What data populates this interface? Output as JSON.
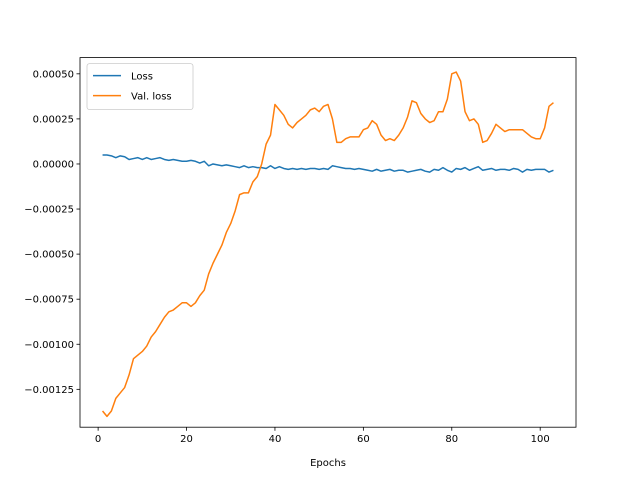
{
  "chart_data": {
    "type": "line",
    "title": "",
    "xlabel": "Epochs",
    "ylabel": "",
    "xlim": [
      -4.1,
      108.1
    ],
    "ylim": [
      -0.00146,
      0.00059
    ],
    "xticks": [
      0,
      20,
      40,
      60,
      80,
      100
    ],
    "xtick_labels": [
      "0",
      "20",
      "40",
      "60",
      "80",
      "100"
    ],
    "yticks": [
      -0.00125,
      -0.001,
      -0.00075,
      -0.0005,
      -0.00025,
      0,
      0.00025,
      0.0005
    ],
    "ytick_labels": [
      "−0.00125",
      "−0.00100",
      "−0.00075",
      "−0.00050",
      "−0.00025",
      "0.00000",
      "0.00025",
      "0.00050"
    ],
    "grid": false,
    "legend_position": "top-left",
    "x": [
      1,
      2,
      3,
      4,
      5,
      6,
      7,
      8,
      9,
      10,
      11,
      12,
      13,
      14,
      15,
      16,
      17,
      18,
      19,
      20,
      21,
      22,
      23,
      24,
      25,
      26,
      27,
      28,
      29,
      30,
      31,
      32,
      33,
      34,
      35,
      36,
      37,
      38,
      39,
      40,
      41,
      42,
      43,
      44,
      45,
      46,
      47,
      48,
      49,
      50,
      51,
      52,
      53,
      54,
      55,
      56,
      57,
      58,
      59,
      60,
      61,
      62,
      63,
      64,
      65,
      66,
      67,
      68,
      69,
      70,
      71,
      72,
      73,
      74,
      75,
      76,
      77,
      78,
      79,
      80,
      81,
      82,
      83,
      84,
      85,
      86,
      87,
      88,
      89,
      90,
      91,
      92,
      93,
      94,
      95,
      96,
      97,
      98,
      99,
      100,
      101,
      102,
      103
    ],
    "series": [
      {
        "name": "Loss",
        "color": "#1f77b4",
        "values": [
          5e-05,
          5e-05,
          4.5e-05,
          3.5e-05,
          4.5e-05,
          4e-05,
          2.5e-05,
          3e-05,
          3.5e-05,
          2.5e-05,
          3.5e-05,
          2.5e-05,
          3e-05,
          3.5e-05,
          2.5e-05,
          2e-05,
          2.5e-05,
          2e-05,
          1.5e-05,
          1.5e-05,
          2e-05,
          1.5e-05,
          5e-06,
          1.5e-05,
          -1e-05,
          0.0,
          -5e-06,
          -1e-05,
          -5e-06,
          -1e-05,
          -1.5e-05,
          -2e-05,
          -1e-05,
          -2e-05,
          -1.5e-05,
          -2e-05,
          -2e-05,
          -2.5e-05,
          -1e-05,
          -2.5e-05,
          -1.5e-05,
          -2.5e-05,
          -3e-05,
          -2.5e-05,
          -3e-05,
          -2.5e-05,
          -3e-05,
          -2.5e-05,
          -2.5e-05,
          -3e-05,
          -2.5e-05,
          -3e-05,
          -1e-05,
          -1.5e-05,
          -2e-05,
          -2.5e-05,
          -2.5e-05,
          -3e-05,
          -2.5e-05,
          -3e-05,
          -3.5e-05,
          -4e-05,
          -3e-05,
          -4e-05,
          -3.5e-05,
          -3e-05,
          -4e-05,
          -3.5e-05,
          -3.5e-05,
          -4.5e-05,
          -4e-05,
          -3.5e-05,
          -3e-05,
          -4e-05,
          -4.5e-05,
          -3e-05,
          -3.5e-05,
          -2e-05,
          -3.5e-05,
          -4.5e-05,
          -2.5e-05,
          -3e-05,
          -2e-05,
          -3.5e-05,
          -2.5e-05,
          -1.5e-05,
          -3.5e-05,
          -3e-05,
          -2.5e-05,
          -3.5e-05,
          -3e-05,
          -3e-05,
          -3.5e-05,
          -2.5e-05,
          -3e-05,
          -4.5e-05,
          -3e-05,
          -3.5e-05,
          -3e-05,
          -3e-05,
          -3e-05,
          -4.5e-05,
          -3.5e-05
        ]
      },
      {
        "name": "Val. loss",
        "color": "#ff7f0e",
        "values": [
          -0.00137,
          -0.0014,
          -0.00137,
          -0.0013,
          -0.00127,
          -0.00124,
          -0.00117,
          -0.00108,
          -0.00106,
          -0.00104,
          -0.00101,
          -0.00096,
          -0.00093,
          -0.00089,
          -0.00085,
          -0.00082,
          -0.00081,
          -0.00079,
          -0.00077,
          -0.00077,
          -0.00079,
          -0.00077,
          -0.00073,
          -0.0007,
          -0.00061,
          -0.00055,
          -0.0005,
          -0.00045,
          -0.00038,
          -0.00033,
          -0.00026,
          -0.00017,
          -0.00016,
          -0.00016,
          -0.0001,
          -7e-05,
          0.0,
          0.00011,
          0.00016,
          0.00033,
          0.0003,
          0.00027,
          0.00022,
          0.0002,
          0.00023,
          0.00025,
          0.00027,
          0.0003,
          0.00031,
          0.00029,
          0.00032,
          0.00033,
          0.00025,
          0.00012,
          0.00012,
          0.00014,
          0.00015,
          0.00015,
          0.00015,
          0.00019,
          0.0002,
          0.00024,
          0.00022,
          0.00016,
          0.00013,
          0.00014,
          0.00013,
          0.00016,
          0.0002,
          0.00026,
          0.00035,
          0.00034,
          0.00028,
          0.00025,
          0.00023,
          0.00024,
          0.00029,
          0.00029,
          0.00036,
          0.0005,
          0.00051,
          0.00046,
          0.00029,
          0.00024,
          0.00025,
          0.00022,
          0.00012,
          0.00013,
          0.00017,
          0.00022,
          0.0002,
          0.00018,
          0.00019,
          0.00019,
          0.00019,
          0.00019,
          0.00017,
          0.00015,
          0.00014,
          0.00014,
          0.0002,
          0.00032,
          0.00034
        ]
      }
    ]
  }
}
